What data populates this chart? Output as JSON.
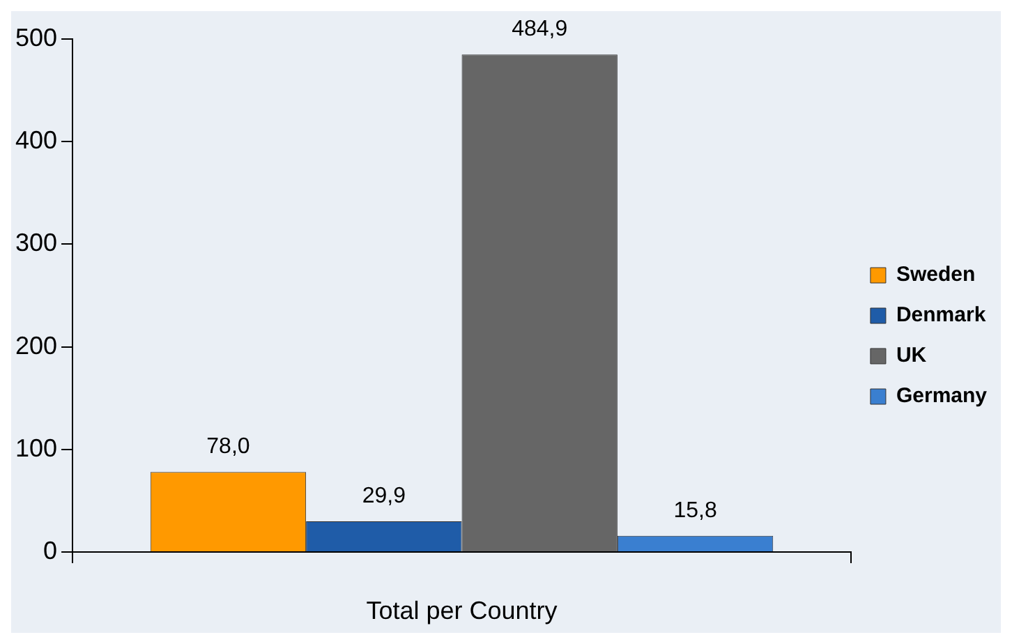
{
  "chart_data": {
    "type": "bar",
    "xlabel": "Total per Country",
    "categories": [
      null
    ],
    "ylim": [
      0,
      500
    ],
    "yticks": [
      0,
      100,
      200,
      300,
      400,
      500
    ],
    "legend": "right",
    "series": [
      {
        "name": "Sweden",
        "color": "#ff9900",
        "values": [
          78.0
        ],
        "value_labels": [
          "78,0"
        ]
      },
      {
        "name": "Denmark",
        "color": "#1f5ca8",
        "values": [
          29.9
        ],
        "value_labels": [
          "29,9"
        ]
      },
      {
        "name": "UK",
        "color": "#666666",
        "values": [
          484.9
        ],
        "value_labels": [
          "484,9"
        ]
      },
      {
        "name": "Germany",
        "color": "#3a7fd0",
        "values": [
          15.8
        ],
        "value_labels": [
          "15,8"
        ]
      }
    ]
  }
}
